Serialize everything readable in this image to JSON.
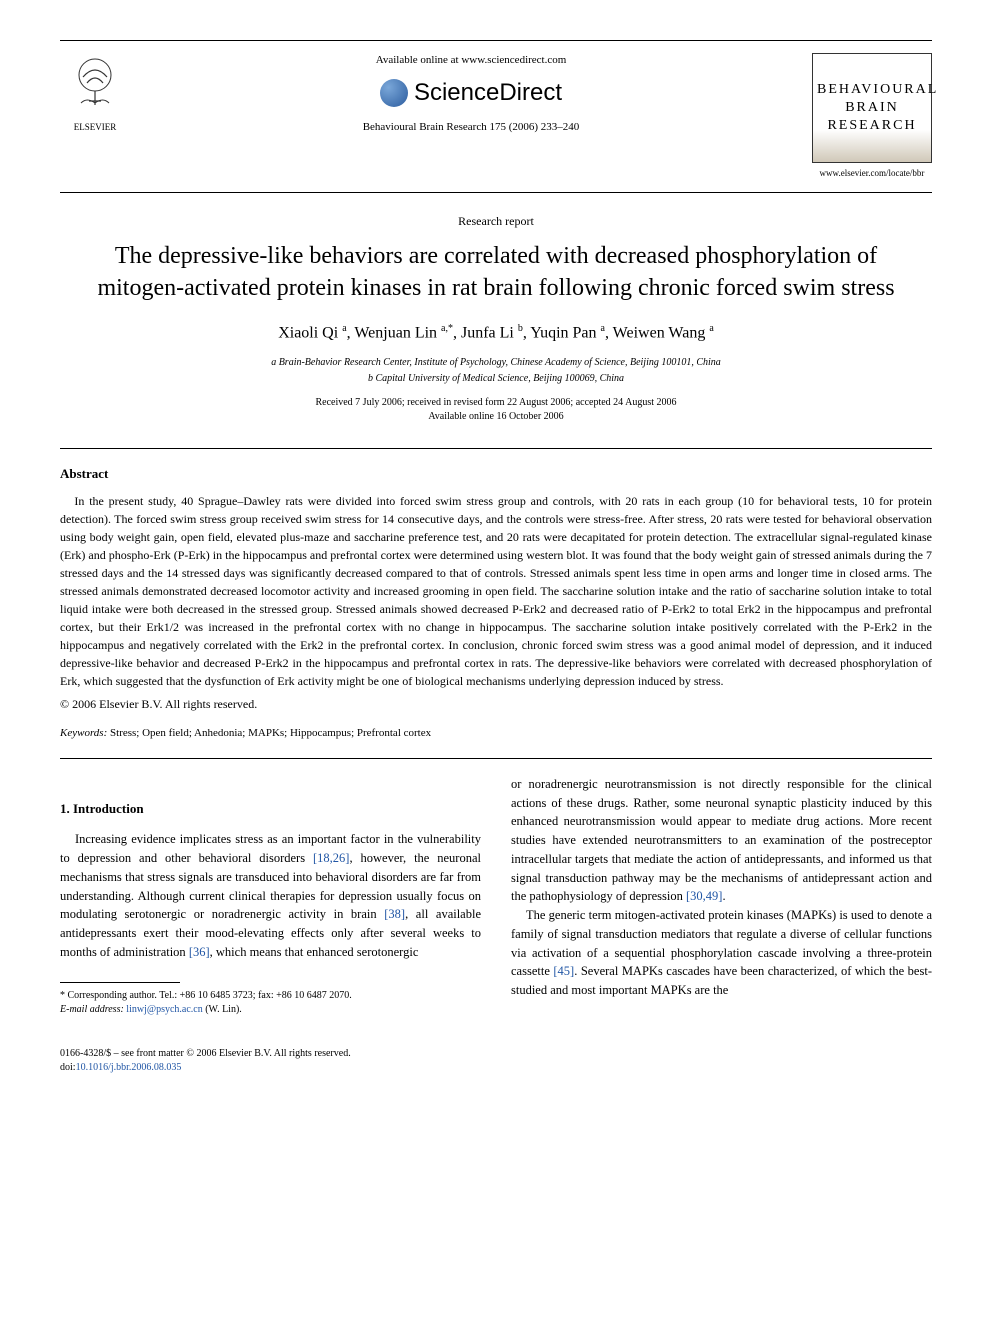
{
  "header": {
    "available_online": "Available online at www.sciencedirect.com",
    "sciencedirect_label": "ScienceDirect",
    "elsevier_label": "ELSEVIER",
    "journal_ref": "Behavioural Brain Research 175 (2006) 233–240",
    "journal_name_line1": "BEHAVIOURAL",
    "journal_name_line2": "BRAIN",
    "journal_name_line3": "RESEARCH",
    "journal_url": "www.elsevier.com/locate/bbr"
  },
  "article": {
    "type": "Research report",
    "title": "The depressive-like behaviors are correlated with decreased phosphorylation of mitogen-activated protein kinases in rat brain following chronic forced swim stress",
    "authors_html": "Xiaoli Qi <sup>a</sup>, Wenjuan Lin <sup>a,*</sup>, Junfa Li <sup>b</sup>, Yuqin Pan <sup>a</sup>, Weiwen Wang <sup>a</sup>",
    "affiliation_a": "a Brain-Behavior Research Center, Institute of Psychology, Chinese Academy of Science, Beijing 100101, China",
    "affiliation_b": "b Capital University of Medical Science, Beijing 100069, China",
    "dates_line1": "Received 7 July 2006; received in revised form 22 August 2006; accepted 24 August 2006",
    "dates_line2": "Available online 16 October 2006"
  },
  "abstract": {
    "heading": "Abstract",
    "text": "In the present study, 40 Sprague–Dawley rats were divided into forced swim stress group and controls, with 20 rats in each group (10 for behavioral tests, 10 for protein detection). The forced swim stress group received swim stress for 14 consecutive days, and the controls were stress-free. After stress, 20 rats were tested for behavioral observation using body weight gain, open field, elevated plus-maze and saccharine preference test, and 20 rats were decapitated for protein detection. The extracellular signal-regulated kinase (Erk) and phospho-Erk (P-Erk) in the hippocampus and prefrontal cortex were determined using western blot. It was found that the body weight gain of stressed animals during the 7 stressed days and the 14 stressed days was significantly decreased compared to that of controls. Stressed animals spent less time in open arms and longer time in closed arms. The stressed animals demonstrated decreased locomotor activity and increased grooming in open field. The saccharine solution intake and the ratio of saccharine solution intake to total liquid intake were both decreased in the stressed group. Stressed animals showed decreased P-Erk2 and decreased ratio of P-Erk2 to total Erk2 in the hippocampus and prefrontal cortex, but their Erk1/2 was increased in the prefrontal cortex with no change in hippocampus. The saccharine solution intake positively correlated with the P-Erk2 in the hippocampus and negatively correlated with the Erk2 in the prefrontal cortex. In conclusion, chronic forced swim stress was a good animal model of depression, and it induced depressive-like behavior and decreased P-Erk2 in the hippocampus and prefrontal cortex in rats. The depressive-like behaviors were correlated with decreased phosphorylation of Erk, which suggested that the dysfunction of Erk activity might be one of biological mechanisms underlying depression induced by stress.",
    "copyright": "© 2006 Elsevier B.V. All rights reserved."
  },
  "keywords": {
    "label": "Keywords:",
    "text": " Stress; Open field; Anhedonia; MAPKs; Hippocampus; Prefrontal cortex"
  },
  "intro": {
    "heading": "1.  Introduction",
    "col1_p1_a": "Increasing evidence implicates stress as an important factor in the vulnerability to depression and other behavioral disorders ",
    "col1_ref1": "[18,26]",
    "col1_p1_b": ", however, the neuronal mechanisms that stress signals are transduced into behavioral disorders are far from understanding. Although current clinical therapies for depression usually focus on modulating serotonergic or noradrenergic activity in brain ",
    "col1_ref2": "[38]",
    "col1_p1_c": ", all available antidepressants exert their mood-elevating effects only after several weeks to months of administration ",
    "col1_ref3": "[36]",
    "col1_p1_d": ", which means that enhanced serotonergic",
    "col2_p1_a": "or noradrenergic neurotransmission is not directly responsible for the clinical actions of these drugs. Rather, some neuronal synaptic plasticity induced by this enhanced neurotransmission would appear to mediate drug actions. More recent studies have extended neurotransmitters to an examination of the postreceptor intracellular targets that mediate the action of antidepressants, and informed us that signal transduction pathway may be the mechanisms of antidepressant action and the pathophysiology of depression ",
    "col2_ref1": "[30,49]",
    "col2_p1_b": ".",
    "col2_p2_a": "The generic term mitogen-activated protein kinases (MAPKs) is used to denote a family of signal transduction mediators that regulate a diverse of cellular functions via activation of a sequential phosphorylation cascade involving a three-protein cassette ",
    "col2_ref2": "[45]",
    "col2_p2_b": ". Several MAPKs cascades have been characterized, of which the best-studied and most important MAPKs are the"
  },
  "footnote": {
    "corr": "* Corresponding author. Tel.: +86 10 6485 3723; fax: +86 10 6487 2070.",
    "email_label": "E-mail address:",
    "email": " linwj@psych.ac.cn",
    "email_suffix": " (W. Lin)."
  },
  "footer": {
    "issn": "0166-4328/$ – see front matter © 2006 Elsevier B.V. All rights reserved.",
    "doi_label": "doi:",
    "doi": "10.1016/j.bbr.2006.08.035"
  },
  "colors": {
    "link": "#2156a5",
    "text": "#000000",
    "bg": "#ffffff"
  }
}
